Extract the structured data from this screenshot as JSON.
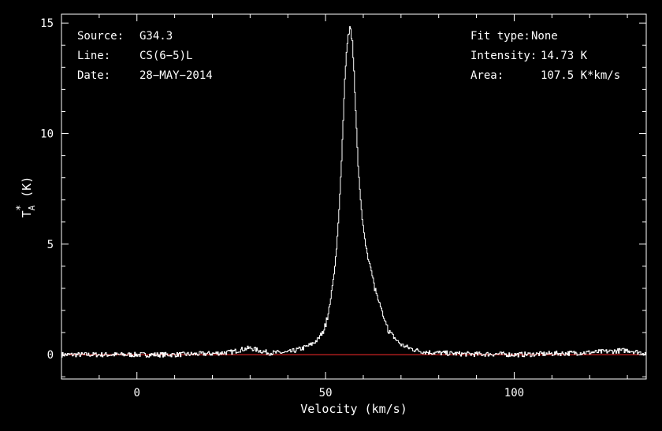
{
  "chart_data": {
    "type": "line",
    "title": "",
    "xlabel": "Velocity (km/s)",
    "ylabel": {
      "base": "T",
      "sub": "A",
      "sup": "*",
      "rest": " (K)"
    },
    "xlim": [
      -20,
      135
    ],
    "ylim": [
      -1.1,
      15.4
    ],
    "x_ticks": [
      0,
      50,
      100
    ],
    "x_tick_labels": [
      "0",
      "50",
      "100"
    ],
    "y_ticks": [
      0,
      5,
      10,
      15
    ],
    "y_tick_labels": [
      "0",
      "5",
      "10",
      "15"
    ],
    "grid": false,
    "colors": {
      "background": "#000000",
      "spectrum": "#ffffff",
      "baseline": "#cc2222",
      "frame": "#ffffff"
    },
    "info_left": [
      {
        "key": "Source:",
        "value": "G34.3"
      },
      {
        "key": "Line:",
        "value": "CS(6−5)L"
      },
      {
        "key": "Date:",
        "value": "28−MAY−2014"
      }
    ],
    "info_right": [
      {
        "key": "Fit type:",
        "value": "None"
      },
      {
        "key": "Intensity:",
        "value": "14.73 K"
      },
      {
        "key": "Area:",
        "value": "107.5 K*km/s"
      }
    ],
    "baseline_y": 0,
    "series": [
      {
        "x": [
          -20,
          -10,
          0,
          10,
          20,
          25,
          28,
          30,
          32,
          35,
          40,
          44,
          46,
          48,
          49,
          50,
          51,
          52,
          53,
          53.5,
          54,
          54.5,
          55,
          55.5,
          56,
          56.5,
          57,
          57.5,
          58,
          58.5,
          59,
          59.5,
          60,
          60.5,
          61,
          62,
          63,
          64,
          65,
          66,
          67,
          68,
          69,
          70,
          72,
          74,
          76,
          78,
          80,
          85,
          90,
          95,
          100,
          105,
          110,
          115,
          120,
          125,
          130,
          135
        ],
        "y": [
          0.0,
          0.0,
          0.0,
          0.0,
          0.05,
          0.12,
          0.25,
          0.3,
          0.2,
          0.08,
          0.1,
          0.3,
          0.45,
          0.7,
          1.0,
          1.4,
          2.2,
          3.4,
          5.2,
          6.6,
          8.2,
          10.2,
          12.3,
          13.8,
          14.6,
          14.73,
          14.2,
          12.7,
          10.6,
          8.6,
          7.3,
          6.4,
          5.6,
          5.1,
          4.6,
          3.8,
          3.0,
          2.4,
          1.8,
          1.3,
          1.0,
          0.8,
          0.6,
          0.45,
          0.3,
          0.2,
          0.13,
          0.1,
          0.08,
          0.04,
          0.02,
          0.03,
          0.0,
          0.02,
          0.05,
          0.07,
          0.1,
          0.15,
          0.2,
          0.05
        ]
      }
    ]
  }
}
